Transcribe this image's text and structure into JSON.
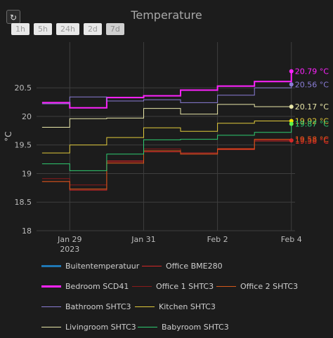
{
  "reset_icon": "↻",
  "range_buttons": [
    {
      "label": "1h",
      "active": false
    },
    {
      "label": "5h",
      "active": false
    },
    {
      "label": "24h",
      "active": false
    },
    {
      "label": "2d",
      "active": false
    },
    {
      "label": "7d",
      "active": true
    }
  ],
  "chart_data": {
    "type": "line",
    "title": "Temperature",
    "xlabel": "",
    "ylabel": "°C",
    "ylim": [
      18,
      21.3
    ],
    "yticks": [
      18,
      18.5,
      19,
      19.5,
      20,
      20.5
    ],
    "xlim": [
      -0.9,
      6.1
    ],
    "xticks": [
      {
        "x": 0,
        "label": "Jan 29",
        "sublabel": "2023"
      },
      {
        "x": 2,
        "label": "Jan 31",
        "sublabel": ""
      },
      {
        "x": 4,
        "label": "Feb 2",
        "sublabel": ""
      },
      {
        "x": 6,
        "label": "Feb 4",
        "sublabel": ""
      }
    ],
    "grid": true,
    "legend_position": "bottom",
    "series": [
      {
        "name": "Buitentemperatuur",
        "color": "#1f77b4",
        "width": 2.5,
        "points": [],
        "end_label": ""
      },
      {
        "name": "Office BME280",
        "color": "#d62728",
        "width": 1,
        "points": [
          [
            -0.75,
            18.86
          ],
          [
            0,
            18.86
          ],
          [
            0,
            18.71
          ],
          [
            1,
            18.71
          ],
          [
            1,
            19.22
          ],
          [
            2,
            19.22
          ],
          [
            2,
            19.38
          ],
          [
            3,
            19.38
          ],
          [
            3,
            19.36
          ],
          [
            4,
            19.36
          ],
          [
            4,
            19.42
          ],
          [
            5,
            19.42
          ],
          [
            5,
            19.57
          ],
          [
            6,
            19.57
          ]
        ],
        "end_label": "19.58 °C"
      },
      {
        "name": "Bedroom SCD41",
        "color": "#ff22ff",
        "width": 2,
        "points": [
          [
            -0.75,
            20.24
          ],
          [
            0,
            20.24
          ],
          [
            0,
            20.15
          ],
          [
            1,
            20.15
          ],
          [
            1,
            20.33
          ],
          [
            2,
            20.33
          ],
          [
            2,
            20.36
          ],
          [
            3,
            20.36
          ],
          [
            3,
            20.46
          ],
          [
            4,
            20.46
          ],
          [
            4,
            20.53
          ],
          [
            5,
            20.53
          ],
          [
            5,
            20.61
          ],
          [
            6,
            20.61
          ],
          [
            6,
            20.79
          ]
        ],
        "end_label": "20.79 °C"
      },
      {
        "name": "Office 1 SHTC3",
        "color": "#8b1a1a",
        "width": 1,
        "points": [
          [
            -0.75,
            18.91
          ],
          [
            0,
            18.91
          ],
          [
            0,
            18.8
          ],
          [
            1,
            18.8
          ],
          [
            1,
            19.2
          ],
          [
            2,
            19.2
          ],
          [
            2,
            19.43
          ],
          [
            3,
            19.43
          ],
          [
            3,
            19.34
          ],
          [
            4,
            19.34
          ],
          [
            4,
            19.44
          ],
          [
            5,
            19.44
          ],
          [
            5,
            19.59
          ],
          [
            6,
            19.59
          ]
        ],
        "end_label": "19.56 °C"
      },
      {
        "name": "Office 2 SHTC3",
        "color": "#d4581a",
        "width": 1,
        "points": [
          [
            -0.75,
            18.86
          ],
          [
            0,
            18.86
          ],
          [
            0,
            18.73
          ],
          [
            1,
            18.73
          ],
          [
            1,
            19.18
          ],
          [
            2,
            19.18
          ],
          [
            2,
            19.4
          ],
          [
            3,
            19.4
          ],
          [
            3,
            19.34
          ],
          [
            4,
            19.34
          ],
          [
            4,
            19.43
          ],
          [
            5,
            19.43
          ],
          [
            5,
            19.6
          ],
          [
            6,
            19.6
          ]
        ],
        "end_label": "19.58 °C"
      },
      {
        "name": "Bathroom SHTC3",
        "color": "#8a7dd6",
        "width": 1,
        "points": [
          [
            -0.75,
            20.22
          ],
          [
            0,
            20.22
          ],
          [
            0,
            20.34
          ],
          [
            1,
            20.34
          ],
          [
            1,
            20.27
          ],
          [
            2,
            20.27
          ],
          [
            2,
            20.29
          ],
          [
            3,
            20.29
          ],
          [
            3,
            20.24
          ],
          [
            4,
            20.24
          ],
          [
            4,
            20.37
          ],
          [
            5,
            20.37
          ],
          [
            5,
            20.5
          ],
          [
            6,
            20.5
          ],
          [
            6,
            20.56
          ]
        ],
        "end_label": "20.56 °C"
      },
      {
        "name": "Kitchen SHTC3",
        "color": "#e0c93a",
        "width": 1,
        "points": [
          [
            -0.75,
            19.36
          ],
          [
            0,
            19.36
          ],
          [
            0,
            19.5
          ],
          [
            1,
            19.5
          ],
          [
            1,
            19.63
          ],
          [
            2,
            19.63
          ],
          [
            2,
            19.8
          ],
          [
            3,
            19.8
          ],
          [
            3,
            19.74
          ],
          [
            4,
            19.74
          ],
          [
            4,
            19.88
          ],
          [
            5,
            19.88
          ],
          [
            5,
            19.92
          ],
          [
            6,
            19.92
          ]
        ],
        "end_label": "19.92 °C"
      },
      {
        "name": "Livingroom SHTC3",
        "color": "#e8e6a8",
        "width": 1,
        "points": [
          [
            -0.75,
            19.81
          ],
          [
            0,
            19.81
          ],
          [
            0,
            19.96
          ],
          [
            1,
            19.96
          ],
          [
            1,
            19.97
          ],
          [
            2,
            19.97
          ],
          [
            2,
            20.14
          ],
          [
            3,
            20.14
          ],
          [
            3,
            20.04
          ],
          [
            4,
            20.04
          ],
          [
            4,
            20.21
          ],
          [
            5,
            20.21
          ],
          [
            5,
            20.17
          ],
          [
            6,
            20.17
          ]
        ],
        "end_label": "20.17 °C"
      },
      {
        "name": "Babyroom SHTC3",
        "color": "#2ecc71",
        "width": 1,
        "points": [
          [
            -0.75,
            19.17
          ],
          [
            0,
            19.17
          ],
          [
            0,
            19.05
          ],
          [
            1,
            19.05
          ],
          [
            1,
            19.34
          ],
          [
            2,
            19.34
          ],
          [
            2,
            19.59
          ],
          [
            3,
            19.59
          ],
          [
            3,
            19.6
          ],
          [
            4,
            19.6
          ],
          [
            4,
            19.67
          ],
          [
            5,
            19.67
          ],
          [
            5,
            19.72
          ],
          [
            6,
            19.72
          ],
          [
            6,
            19.87
          ]
        ],
        "end_label": "19.87 °C"
      }
    ]
  },
  "end_markers": [
    {
      "value": 19.58,
      "color": "#d62728"
    },
    {
      "value": 20.79,
      "color": "#ff22ff"
    },
    {
      "value": 20.56,
      "color": "#8a7dd6"
    },
    {
      "value": 20.17,
      "color": "#e8e6a8"
    },
    {
      "value": 19.92,
      "color": "#f5e000"
    },
    {
      "value": 19.87,
      "color": "#5ef04a"
    }
  ]
}
